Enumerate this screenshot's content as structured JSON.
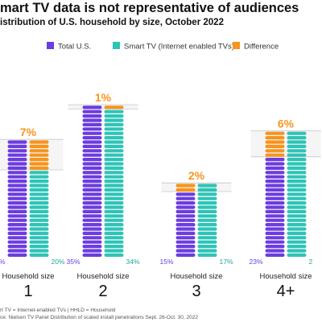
{
  "title": "mart TV data is not representative of audiences",
  "subtitle": "istribution of U.S. household by size, October 2022",
  "footnotes": [
    "rt TV = Internet-enabled TVs  |  HHLD = Household",
    "ce: Nielsen TV Panel Distribution of scaled install penetrations Sept. 26-Oct. 30, 2022"
  ],
  "colors": {
    "total": "#6c3ce0",
    "smart": "#2ec4b6",
    "difference": "#f7941d",
    "diff_label": "#f7941d"
  },
  "chart_data": {
    "type": "bar",
    "group_caption": "Household size",
    "categories": [
      "1",
      "2",
      "3",
      "4+"
    ],
    "series": [
      {
        "name": "Total U.S.",
        "values": [
          27,
          35,
          15,
          23
        ]
      },
      {
        "name": "Smart TV (Internet enabled TVs)",
        "values": [
          20,
          34,
          17,
          29
        ]
      }
    ],
    "difference_label": "Difference",
    "differences": [
      "7%",
      "1%",
      "2%",
      "6%"
    ],
    "left_labels": [
      "%",
      "35%",
      "15%",
      "23%"
    ],
    "right_labels": [
      "20%",
      "34%",
      "17%",
      "2"
    ],
    "legend_position": "top"
  }
}
